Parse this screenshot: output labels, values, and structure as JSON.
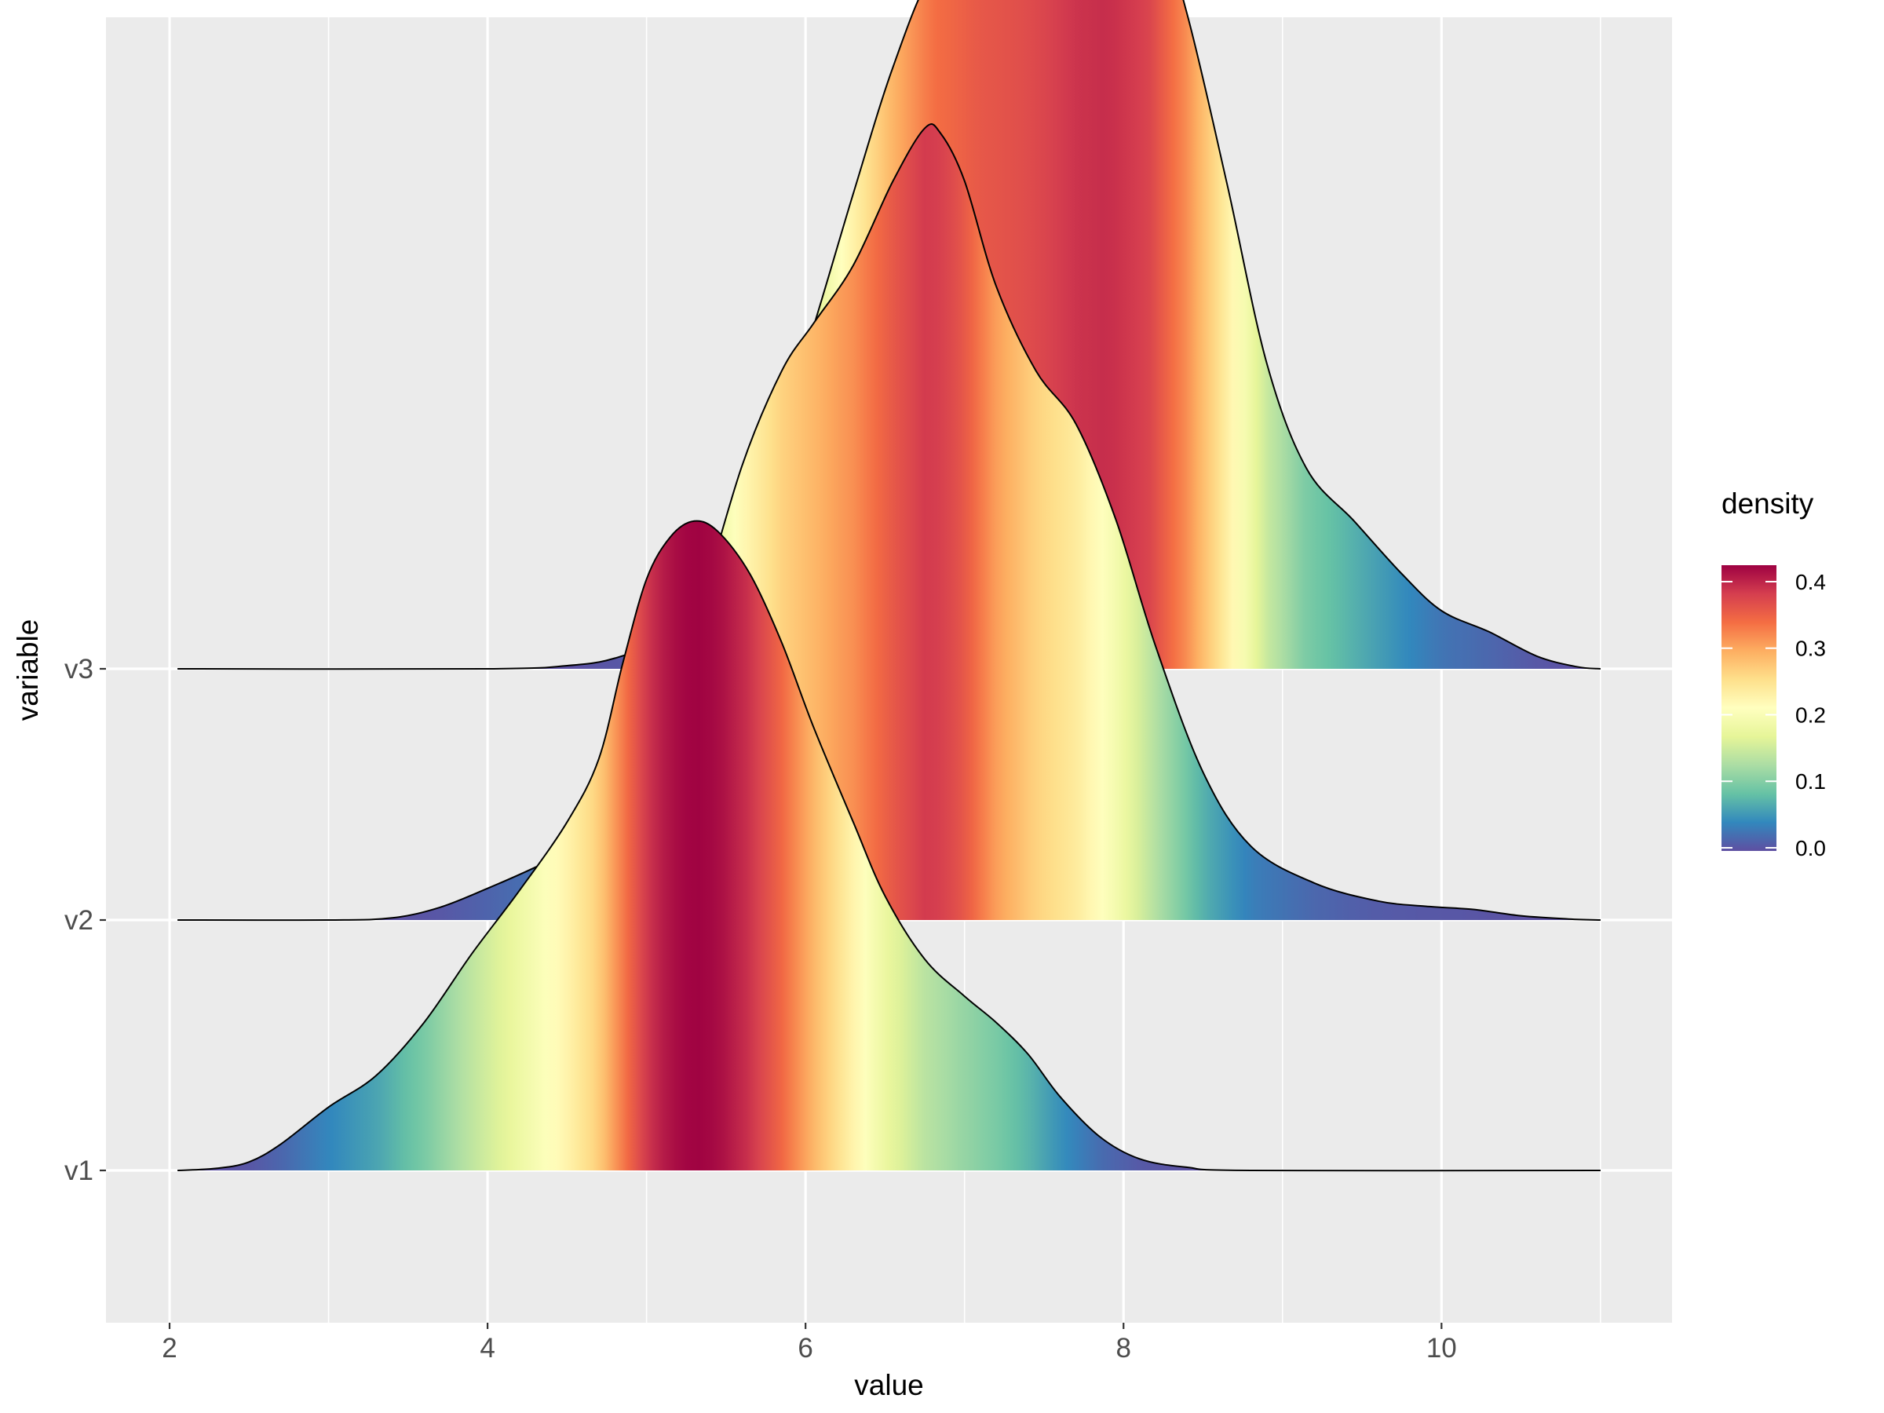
{
  "chart_data": {
    "type": "ridgeline",
    "xlabel": "value",
    "ylabel": "variable",
    "xlim": [
      1.6,
      11.45
    ],
    "x_ticks": [
      2,
      4,
      6,
      8,
      10
    ],
    "x_tick_labels": [
      "2",
      "4",
      "6",
      "8",
      "10"
    ],
    "categories": [
      "v1",
      "v2",
      "v3"
    ],
    "density_peaks": {
      "v1": 0.42,
      "v2": 0.38,
      "v3": 0.39
    },
    "legend": {
      "title": "density",
      "placement": "right",
      "range": [
        0,
        0.42
      ],
      "tick_values": [
        0.0,
        0.1,
        0.2,
        0.3,
        0.4
      ],
      "tick_labels": [
        "0.0",
        "0.1",
        "0.2",
        "0.3",
        "0.4"
      ],
      "palette": [
        "#5e4fa2",
        "#3288bd",
        "#66c2a5",
        "#abdda4",
        "#e6f598",
        "#ffffbf",
        "#fee08b",
        "#fdae61",
        "#f46d43",
        "#d53e4f",
        "#9e0142"
      ]
    },
    "series": [
      {
        "name": "v1",
        "points": [
          [
            2.05,
            0.0
          ],
          [
            2.3,
            0.002
          ],
          [
            2.5,
            0.008
          ],
          [
            2.7,
            0.025
          ],
          [
            3.0,
            0.06
          ],
          [
            3.3,
            0.09
          ],
          [
            3.6,
            0.14
          ],
          [
            3.9,
            0.205
          ],
          [
            4.2,
            0.265
          ],
          [
            4.5,
            0.33
          ],
          [
            4.7,
            0.39
          ],
          [
            4.85,
            0.48
          ],
          [
            5.0,
            0.56
          ],
          [
            5.15,
            0.6
          ],
          [
            5.3,
            0.615
          ],
          [
            5.45,
            0.605
          ],
          [
            5.65,
            0.565
          ],
          [
            5.85,
            0.5
          ],
          [
            6.05,
            0.42
          ],
          [
            6.3,
            0.33
          ],
          [
            6.5,
            0.26
          ],
          [
            6.75,
            0.2
          ],
          [
            7.0,
            0.165
          ],
          [
            7.2,
            0.14
          ],
          [
            7.4,
            0.11
          ],
          [
            7.6,
            0.07
          ],
          [
            7.85,
            0.032
          ],
          [
            8.1,
            0.011
          ],
          [
            8.4,
            0.003
          ],
          [
            8.8,
            0.0
          ],
          [
            11.0,
            0.0
          ]
        ]
      },
      {
        "name": "v2",
        "points": [
          [
            2.05,
            0.0
          ],
          [
            3.0,
            0.0
          ],
          [
            3.4,
            0.002
          ],
          [
            3.7,
            0.012
          ],
          [
            4.0,
            0.03
          ],
          [
            4.3,
            0.05
          ],
          [
            4.7,
            0.08
          ],
          [
            5.0,
            0.16
          ],
          [
            5.3,
            0.28
          ],
          [
            5.6,
            0.43
          ],
          [
            5.85,
            0.52
          ],
          [
            6.05,
            0.565
          ],
          [
            6.3,
            0.62
          ],
          [
            6.55,
            0.7
          ],
          [
            6.75,
            0.75
          ],
          [
            6.85,
            0.745
          ],
          [
            7.0,
            0.7
          ],
          [
            7.2,
            0.6
          ],
          [
            7.45,
            0.52
          ],
          [
            7.7,
            0.47
          ],
          [
            7.95,
            0.38
          ],
          [
            8.2,
            0.26
          ],
          [
            8.5,
            0.14
          ],
          [
            8.8,
            0.07
          ],
          [
            9.2,
            0.035
          ],
          [
            9.6,
            0.018
          ],
          [
            9.9,
            0.013
          ],
          [
            10.2,
            0.01
          ],
          [
            10.5,
            0.004
          ],
          [
            10.8,
            0.001
          ],
          [
            11.0,
            0.0
          ]
        ]
      },
      {
        "name": "v3",
        "points": [
          [
            2.05,
            0.0
          ],
          [
            4.0,
            0.0
          ],
          [
            4.5,
            0.003
          ],
          [
            4.8,
            0.01
          ],
          [
            5.1,
            0.03
          ],
          [
            5.4,
            0.08
          ],
          [
            5.7,
            0.17
          ],
          [
            6.0,
            0.3
          ],
          [
            6.3,
            0.45
          ],
          [
            6.55,
            0.57
          ],
          [
            6.8,
            0.66
          ],
          [
            7.1,
            0.7
          ],
          [
            7.4,
            0.72
          ],
          [
            7.7,
            0.76
          ],
          [
            7.9,
            0.77
          ],
          [
            8.15,
            0.74
          ],
          [
            8.4,
            0.62
          ],
          [
            8.65,
            0.46
          ],
          [
            8.9,
            0.29
          ],
          [
            9.15,
            0.19
          ],
          [
            9.45,
            0.14
          ],
          [
            9.75,
            0.09
          ],
          [
            10.0,
            0.055
          ],
          [
            10.3,
            0.035
          ],
          [
            10.6,
            0.012
          ],
          [
            10.85,
            0.002
          ],
          [
            11.0,
            0.0
          ]
        ]
      }
    ]
  }
}
